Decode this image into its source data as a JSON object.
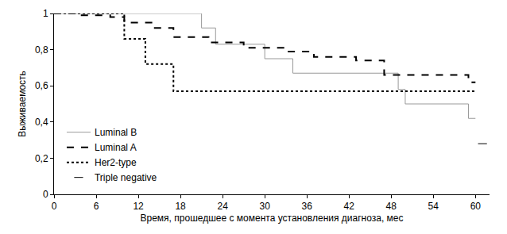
{
  "chart_data": {
    "type": "line",
    "x_label": "Время, прошедшее с момента установления диагноза, мес",
    "y_label": "Выживаемость",
    "xlim": [
      0,
      62
    ],
    "xticks": [
      0,
      6,
      12,
      18,
      24,
      30,
      36,
      42,
      48,
      54,
      60
    ],
    "ylim": [
      0,
      1
    ],
    "yticks": [
      0,
      {
        "value": 0.2,
        "label": "0,2"
      },
      {
        "value": 0.4,
        "label": "0,4"
      },
      {
        "value": 0.6,
        "label": "0,6"
      },
      {
        "value": 0.8,
        "label": "0,8"
      },
      1
    ],
    "grid": false,
    "legend": "bottom left",
    "series": [
      {
        "name": "Luminal B",
        "color": "#999999",
        "line_style": "solid",
        "x": [
          0,
          21,
          23,
          30,
          34,
          49,
          50,
          59,
          60
        ],
        "values": [
          1,
          0.92,
          0.83,
          0.75,
          0.67,
          0.58,
          0.5,
          0.42,
          0.42
        ]
      },
      {
        "name": "Luminal A",
        "color": "#000000",
        "line_style": "dash",
        "x": [
          0,
          3,
          8,
          10,
          14,
          17,
          22,
          27,
          33,
          37,
          43,
          47,
          59,
          60
        ],
        "values": [
          1,
          0.99,
          0.98,
          0.95,
          0.92,
          0.87,
          0.84,
          0.81,
          0.79,
          0.76,
          0.74,
          0.66,
          0.62,
          0.62
        ]
      },
      {
        "name": "Her2-type",
        "color": "#000000",
        "line_style": "dot",
        "x": [
          0,
          10,
          13,
          17,
          60
        ],
        "values": [
          1,
          0.86,
          0.72,
          0.57,
          0.57
        ]
      },
      {
        "name": "Triple negative",
        "color": "#000000",
        "marker": "line-ew",
        "x": [
          61
        ],
        "values": [
          0.28
        ]
      }
    ]
  }
}
